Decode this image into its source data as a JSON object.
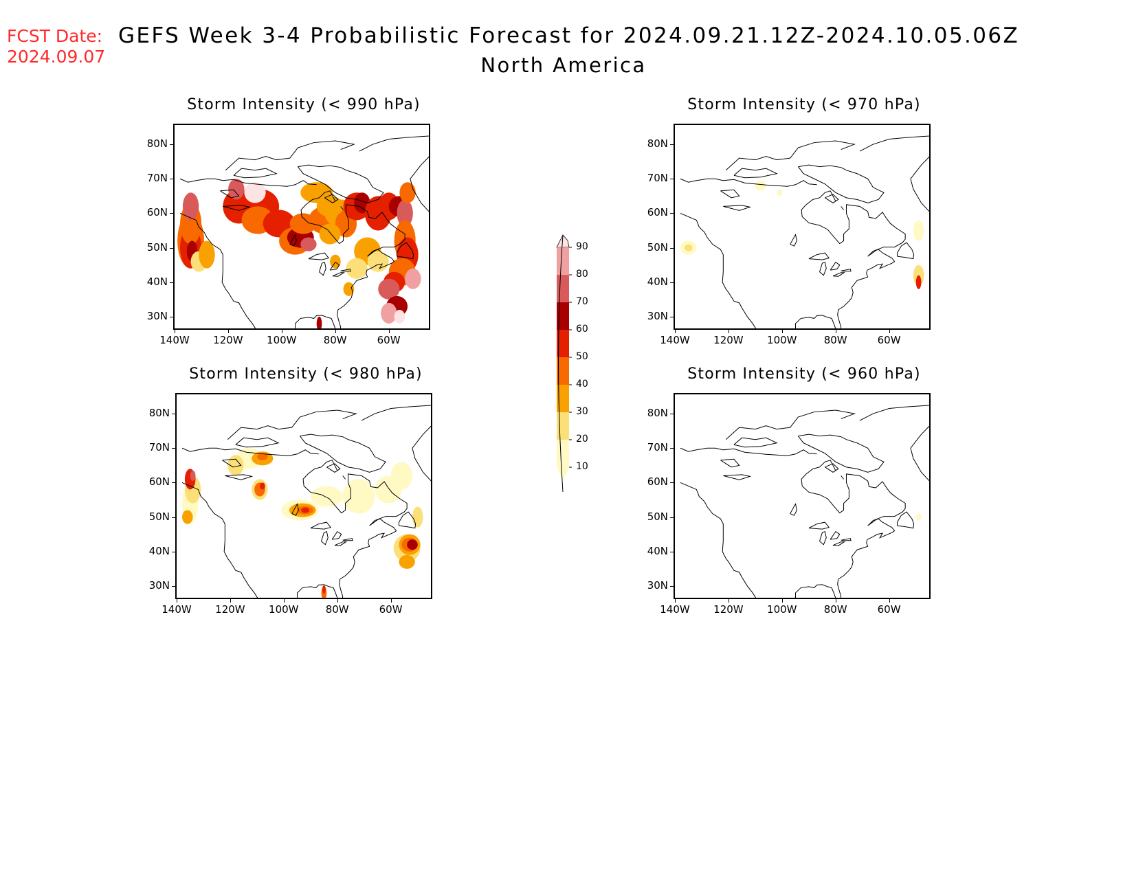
{
  "header": {
    "fcst_label": "FCST Date:",
    "fcst_date": "2024.09.07",
    "title": "GEFS Week 3-4 Probabilistic Forecast for 2024.09.21.12Z-2024.10.05.06Z",
    "subtitle": "North America"
  },
  "colors": {
    "fcst_text": "#ff2a2a",
    "bins": [
      "#fff9c4",
      "#fbe07a",
      "#f9a100",
      "#f86a00",
      "#e42000",
      "#a80000",
      "#d85a5a",
      "#f0a0a0",
      "#fde4e4"
    ]
  },
  "axes": {
    "lat_labels": [
      "80N",
      "70N",
      "60N",
      "50N",
      "40N",
      "30N"
    ],
    "lon_labels": [
      "140W",
      "120W",
      "100W",
      "80W",
      "60W"
    ]
  },
  "colorbar": {
    "labels": [
      "10",
      "20",
      "30",
      "40",
      "50",
      "60",
      "70",
      "80",
      "90"
    ]
  },
  "panels": [
    {
      "id": "p990",
      "title": "Storm Intensity (< 990 hPa)"
    },
    {
      "id": "p970",
      "title": "Storm Intensity (< 970 hPa)"
    },
    {
      "id": "p980",
      "title": "Storm Intensity (< 980 hPa)"
    },
    {
      "id": "p960",
      "title": "Storm Intensity (< 960 hPa)"
    }
  ]
}
